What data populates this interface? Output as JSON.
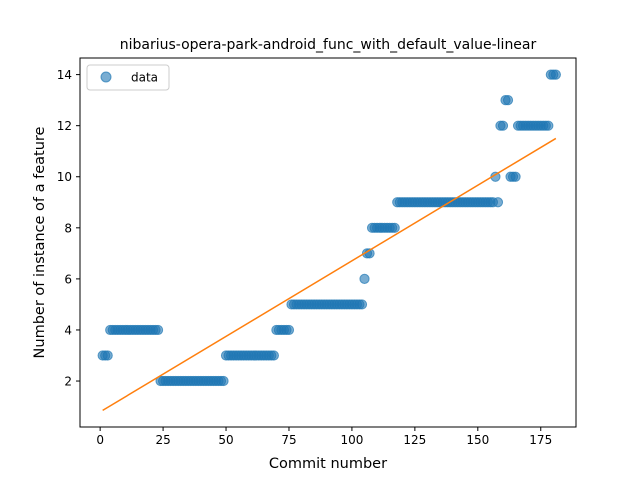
{
  "chart_data": {
    "type": "scatter",
    "title": "nibarius-opera-park-android_func_with_default_value-linear",
    "xlabel": "Commit number",
    "ylabel": "Number of instance of a feature",
    "xlim": [
      -8,
      189
    ],
    "ylim": [
      0.2,
      14.65
    ],
    "xticks": [
      0,
      25,
      50,
      75,
      100,
      125,
      150,
      175
    ],
    "yticks": [
      2,
      4,
      6,
      8,
      10,
      12,
      14
    ],
    "grid": false,
    "legend": {
      "placement": "top-left",
      "entries": [
        "data"
      ]
    },
    "series": [
      {
        "name": "data",
        "kind": "points",
        "color": "#1f77b4",
        "runs": [
          {
            "x_start": 1,
            "x_end": 3,
            "y": 3
          },
          {
            "x_start": 4,
            "x_end": 23,
            "y": 4
          },
          {
            "x_start": 24,
            "x_end": 49,
            "y": 2
          },
          {
            "x_start": 50,
            "x_end": 69,
            "y": 3
          },
          {
            "x_start": 70,
            "x_end": 75,
            "y": 4
          },
          {
            "x_start": 76,
            "x_end": 104,
            "y": 5
          },
          {
            "x_start": 105,
            "x_end": 105,
            "y": 6
          },
          {
            "x_start": 106,
            "x_end": 107,
            "y": 7
          },
          {
            "x_start": 108,
            "x_end": 117,
            "y": 8
          },
          {
            "x_start": 118,
            "x_end": 156,
            "y": 9
          },
          {
            "x_start": 157,
            "x_end": 157,
            "y": 10
          },
          {
            "x_start": 158,
            "x_end": 158,
            "y": 9
          },
          {
            "x_start": 159,
            "x_end": 160,
            "y": 12
          },
          {
            "x_start": 161,
            "x_end": 162,
            "y": 13
          },
          {
            "x_start": 163,
            "x_end": 165,
            "y": 10
          },
          {
            "x_start": 166,
            "x_end": 178,
            "y": 12
          },
          {
            "x_start": 179,
            "x_end": 181,
            "y": 14
          }
        ]
      },
      {
        "kind": "line",
        "color": "#ff7f0e",
        "x": [
          1,
          181
        ],
        "y": [
          0.85,
          11.5
        ]
      }
    ]
  }
}
